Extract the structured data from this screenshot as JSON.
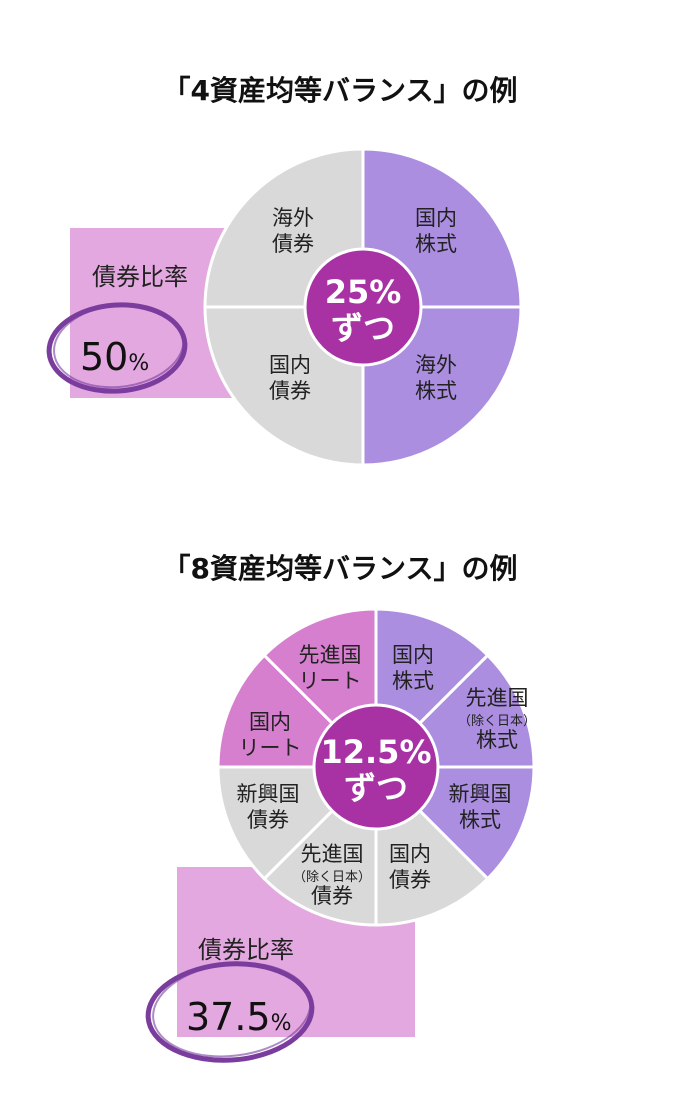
{
  "chart_data": [
    {
      "type": "pie",
      "title": "「4資産均等バランス」の例",
      "center_label": [
        "25%",
        "ずつ"
      ],
      "slices": [
        {
          "label": [
            "国内",
            "株式"
          ],
          "value": 25,
          "color": "#ab8ee0"
        },
        {
          "label": [
            "海外",
            "株式"
          ],
          "value": 25,
          "color": "#ab8ee0"
        },
        {
          "label": [
            "国内",
            "債券"
          ],
          "value": 25,
          "color": "#d9d9d9"
        },
        {
          "label": [
            "海外",
            "債券"
          ],
          "value": 25,
          "color": "#d9d9d9"
        }
      ],
      "bond_ratio": {
        "label": "債券比率",
        "value": "50",
        "unit": "%"
      }
    },
    {
      "type": "pie",
      "title": "「8資産均等バランス」の例",
      "center_label": [
        "12.5%",
        "ずつ"
      ],
      "slices": [
        {
          "label": [
            "国内",
            "株式"
          ],
          "value": 12.5,
          "color": "#ab8ee0"
        },
        {
          "label": [
            "先進国",
            "（除く日本）",
            "株式"
          ],
          "value": 12.5,
          "color": "#ab8ee0"
        },
        {
          "label": [
            "新興国",
            "株式"
          ],
          "value": 12.5,
          "color": "#ab8ee0"
        },
        {
          "label": [
            "国内",
            "債券"
          ],
          "value": 12.5,
          "color": "#d9d9d9"
        },
        {
          "label": [
            "先進国",
            "（除く日本）",
            "債券"
          ],
          "value": 12.5,
          "color": "#d9d9d9"
        },
        {
          "label": [
            "新興国",
            "債券"
          ],
          "value": 12.5,
          "color": "#d9d9d9"
        },
        {
          "label": [
            "国内",
            "リート"
          ],
          "value": 12.5,
          "color": "#d57fce"
        },
        {
          "label": [
            "先進国",
            "リート"
          ],
          "value": 12.5,
          "color": "#d57fce"
        }
      ],
      "bond_ratio": {
        "label": "債券比率",
        "value": "37.5",
        "unit": "%"
      }
    }
  ],
  "colors": {
    "center": "#a832a4",
    "box": "#e4a8e0",
    "ring": "#7a3d9e"
  }
}
